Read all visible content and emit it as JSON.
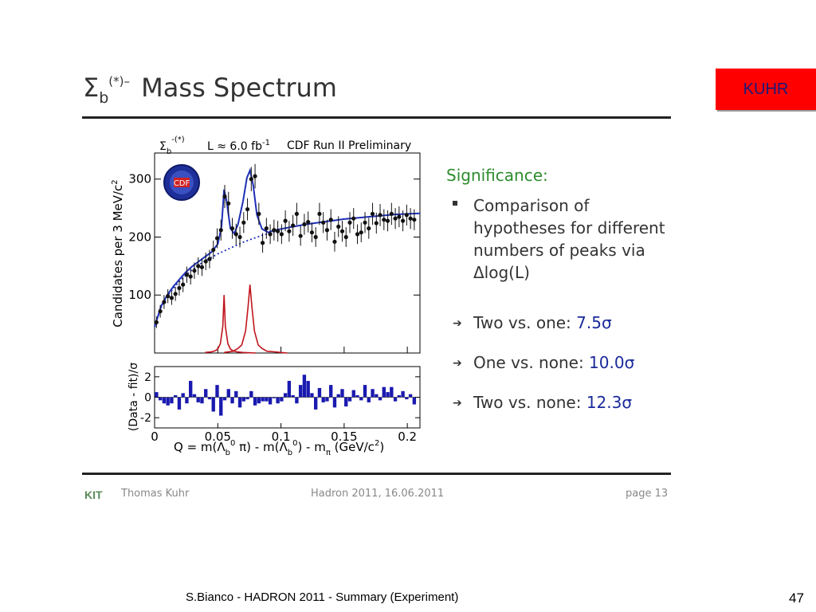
{
  "slide": {
    "title_main": "Mass Spectrum",
    "title_symbol": "Σ",
    "title_sub": "b",
    "title_sup": "(*)–",
    "badge": "KUHR"
  },
  "significance": {
    "heading": "Significance:",
    "bullet": "Comparison of hypotheses for different numbers of peaks via Δlog(L)",
    "results": [
      {
        "label": "Two vs. one: ",
        "value": "7.5σ"
      },
      {
        "label": "One vs. none: ",
        "value": "10.0σ"
      },
      {
        "label": "Two vs. none: ",
        "value": "12.3σ"
      }
    ]
  },
  "footer": {
    "logo": "KIT",
    "author": "Thomas Kuhr",
    "event": "Hadron 2011, 16.06.2011",
    "page": "page 13"
  },
  "bottom": {
    "credit": "S.Bianco - HADRON 2011 - Summary (Experiment)",
    "number": "47"
  },
  "colors": {
    "fit": "#1e2fb5",
    "peaks": "#c0141c",
    "points": "#111111",
    "residual_bars": "#1a1ab0",
    "title_rule": "#222222",
    "badge_bg": "#ff0000",
    "significance_heading": "#2e8b2e",
    "result_values": "#1a2a9a"
  },
  "chart_data": [
    {
      "type": "scatter",
      "annotations": {
        "symbol": "Σ",
        "symbol_sub": "b",
        "symbol_sup": "-(*)",
        "lumi": "L ≈ 6.0 fb",
        "lumi_sup": "-1",
        "experiment": "CDF Run II Preliminary",
        "logo": "CDF"
      },
      "ylabel": "Candidates per 3 MeV/c",
      "ylabel_sup": "2",
      "xlim": [
        0,
        0.21
      ],
      "ylim": [
        0,
        345
      ],
      "y_ticks": [
        "100",
        "200",
        "300"
      ],
      "y_tick_values": [
        100,
        200,
        300
      ],
      "x_tick_values": [
        0,
        0.05,
        0.1,
        0.15,
        0.2
      ],
      "series": [
        {
          "kind": "data_points",
          "x": [
            0.0015,
            0.0045,
            0.0075,
            0.0105,
            0.0135,
            0.0165,
            0.0195,
            0.0225,
            0.0255,
            0.0285,
            0.0315,
            0.0345,
            0.0375,
            0.0405,
            0.0435,
            0.0465,
            0.0495,
            0.0525,
            0.0555,
            0.0585,
            0.0615,
            0.0645,
            0.0675,
            0.0705,
            0.0735,
            0.0765,
            0.0795,
            0.0825,
            0.0855,
            0.0885,
            0.0915,
            0.0945,
            0.0975,
            0.1005,
            0.1035,
            0.1065,
            0.1095,
            0.1125,
            0.1155,
            0.1185,
            0.1215,
            0.1245,
            0.1275,
            0.1305,
            0.1335,
            0.1365,
            0.1395,
            0.1425,
            0.1455,
            0.1485,
            0.1515,
            0.1545,
            0.1575,
            0.1605,
            0.1635,
            0.1665,
            0.1695,
            0.1725,
            0.1755,
            0.1785,
            0.1815,
            0.1845,
            0.1875,
            0.1905,
            0.1935,
            0.1965,
            0.1995,
            0.2025,
            0.2055
          ],
          "y": [
            53,
            72,
            88,
            98,
            95,
            102,
            112,
            118,
            135,
            132,
            142,
            150,
            148,
            158,
            162,
            178,
            198,
            212,
            270,
            258,
            215,
            205,
            200,
            225,
            248,
            300,
            305,
            240,
            190,
            215,
            205,
            212,
            210,
            205,
            228,
            210,
            220,
            240,
            202,
            222,
            226,
            208,
            200,
            240,
            225,
            212,
            230,
            192,
            218,
            210,
            200,
            225,
            232,
            205,
            208,
            225,
            215,
            240,
            224,
            238,
            230,
            228,
            240,
            232,
            235,
            228,
            238,
            232,
            230
          ],
          "err": [
            10,
            11,
            12,
            12,
            12,
            12,
            13,
            13,
            14,
            14,
            14,
            15,
            15,
            15,
            16,
            16,
            17,
            18,
            20,
            20,
            18,
            18,
            18,
            18,
            19,
            21,
            21,
            19,
            17,
            18,
            17,
            18,
            18,
            17,
            18,
            18,
            18,
            19,
            17,
            18,
            18,
            17,
            17,
            19,
            18,
            18,
            18,
            17,
            18,
            18,
            17,
            18,
            18,
            17,
            17,
            18,
            18,
            19,
            18,
            19,
            18,
            18,
            19,
            18,
            18,
            18,
            18,
            18,
            18
          ]
        },
        {
          "kind": "fit_curve",
          "x": [
            0.0,
            0.005,
            0.01,
            0.015,
            0.02,
            0.025,
            0.03,
            0.035,
            0.04,
            0.045,
            0.05,
            0.053,
            0.055,
            0.057,
            0.06,
            0.063,
            0.066,
            0.07,
            0.073,
            0.0755,
            0.078,
            0.081,
            0.085,
            0.09,
            0.095,
            0.1,
            0.11,
            0.12,
            0.13,
            0.14,
            0.15,
            0.16,
            0.17,
            0.18,
            0.19,
            0.2,
            0.21
          ],
          "y": [
            45,
            80,
            100,
            115,
            128,
            140,
            150,
            158,
            166,
            174,
            188,
            218,
            282,
            262,
            215,
            206,
            222,
            262,
            302,
            315,
            290,
            238,
            214,
            208,
            212,
            214,
            218,
            222,
            225,
            228,
            231,
            233,
            235,
            237,
            239,
            240,
            241
          ]
        },
        {
          "kind": "background",
          "x": [
            0.0,
            0.005,
            0.01,
            0.015,
            0.02,
            0.025,
            0.03,
            0.035,
            0.04,
            0.045,
            0.05,
            0.055,
            0.06,
            0.065,
            0.07,
            0.075,
            0.08,
            0.085,
            0.09,
            0.095,
            0.1
          ],
          "y": [
            45,
            78,
            98,
            112,
            124,
            135,
            144,
            152,
            159,
            165,
            171,
            176,
            181,
            186,
            191,
            195,
            199,
            203,
            206,
            209,
            211
          ]
        },
        {
          "kind": "peak",
          "x": [
            0.04,
            0.045,
            0.048,
            0.05,
            0.052,
            0.054,
            0.055,
            0.056,
            0.058,
            0.06,
            0.062,
            0.065,
            0.07,
            0.08
          ],
          "y": [
            1,
            2,
            4,
            7,
            16,
            46,
            100,
            46,
            16,
            7,
            4,
            2,
            1,
            0
          ]
        },
        {
          "kind": "peak",
          "x": [
            0.055,
            0.062,
            0.066,
            0.069,
            0.072,
            0.074,
            0.0755,
            0.077,
            0.079,
            0.082,
            0.085,
            0.089,
            0.095,
            0.105
          ],
          "y": [
            1,
            3,
            8,
            14,
            38,
            80,
            118,
            80,
            38,
            14,
            8,
            3,
            2,
            0
          ]
        }
      ]
    },
    {
      "type": "bar",
      "ylabel": "(Data - fit)/σ",
      "xlabel": "Q = m(Λ",
      "xlabel_parts": [
        "Q = m(Λ",
        "b",
        "0",
        " π) - m(Λ",
        "b",
        "0",
        ") - m",
        "π",
        "  (GeV/c",
        "2",
        ")"
      ],
      "xlim": [
        0,
        0.21
      ],
      "ylim": [
        -3,
        3
      ],
      "y_ticks": [
        "2",
        "0",
        "-2"
      ],
      "y_tick_values": [
        2,
        0,
        -2
      ],
      "x_ticks": [
        "0",
        "0.05",
        "0.1",
        "0.15",
        "0.2"
      ],
      "x_tick_values": [
        0,
        0.05,
        0.1,
        0.15,
        0.2
      ],
      "x": [
        0.0015,
        0.0045,
        0.0075,
        0.0105,
        0.0135,
        0.0165,
        0.0195,
        0.0225,
        0.0255,
        0.0285,
        0.0315,
        0.0345,
        0.0375,
        0.0405,
        0.0435,
        0.0465,
        0.0495,
        0.0525,
        0.0555,
        0.0585,
        0.0615,
        0.0645,
        0.0675,
        0.0705,
        0.0735,
        0.0765,
        0.0795,
        0.0825,
        0.0855,
        0.0885,
        0.0915,
        0.0945,
        0.0975,
        0.1005,
        0.1035,
        0.1065,
        0.1095,
        0.1125,
        0.1155,
        0.1185,
        0.1215,
        0.1245,
        0.1275,
        0.1305,
        0.1335,
        0.1365,
        0.1395,
        0.1425,
        0.1455,
        0.1485,
        0.1515,
        0.1545,
        0.1575,
        0.1605,
        0.1635,
        0.1665,
        0.1695,
        0.1725,
        0.1755,
        0.1785,
        0.1815,
        0.1845,
        0.1875,
        0.1905,
        0.1935,
        0.1965,
        0.1995,
        0.2025,
        0.2055
      ],
      "values": [
        0.5,
        -0.3,
        -0.6,
        -0.8,
        -0.6,
        0.2,
        -1.2,
        0.4,
        -0.6,
        1.6,
        0.3,
        -0.5,
        -0.6,
        0.8,
        -0.2,
        -1.4,
        1.2,
        -1.8,
        -0.3,
        0.8,
        -0.6,
        0.6,
        -1.0,
        -0.4,
        -0.2,
        0.6,
        -0.8,
        -0.6,
        -0.4,
        -0.4,
        -0.7,
        -0.1,
        -0.6,
        -0.4,
        0.4,
        1.6,
        0.2,
        -0.6,
        1.2,
        2.2,
        1.6,
        0.4,
        -1.2,
        0.9,
        -0.5,
        -0.4,
        1.2,
        -1.0,
        0.3,
        0.8,
        -0.9,
        -0.4,
        0.7,
        0.2,
        -0.3,
        1.2,
        -0.5,
        0.8,
        0.3,
        -0.3,
        1.0,
        0.5,
        1.0,
        -0.4,
        0.2,
        0.6,
        -0.2,
        0.3,
        -0.7
      ]
    }
  ]
}
